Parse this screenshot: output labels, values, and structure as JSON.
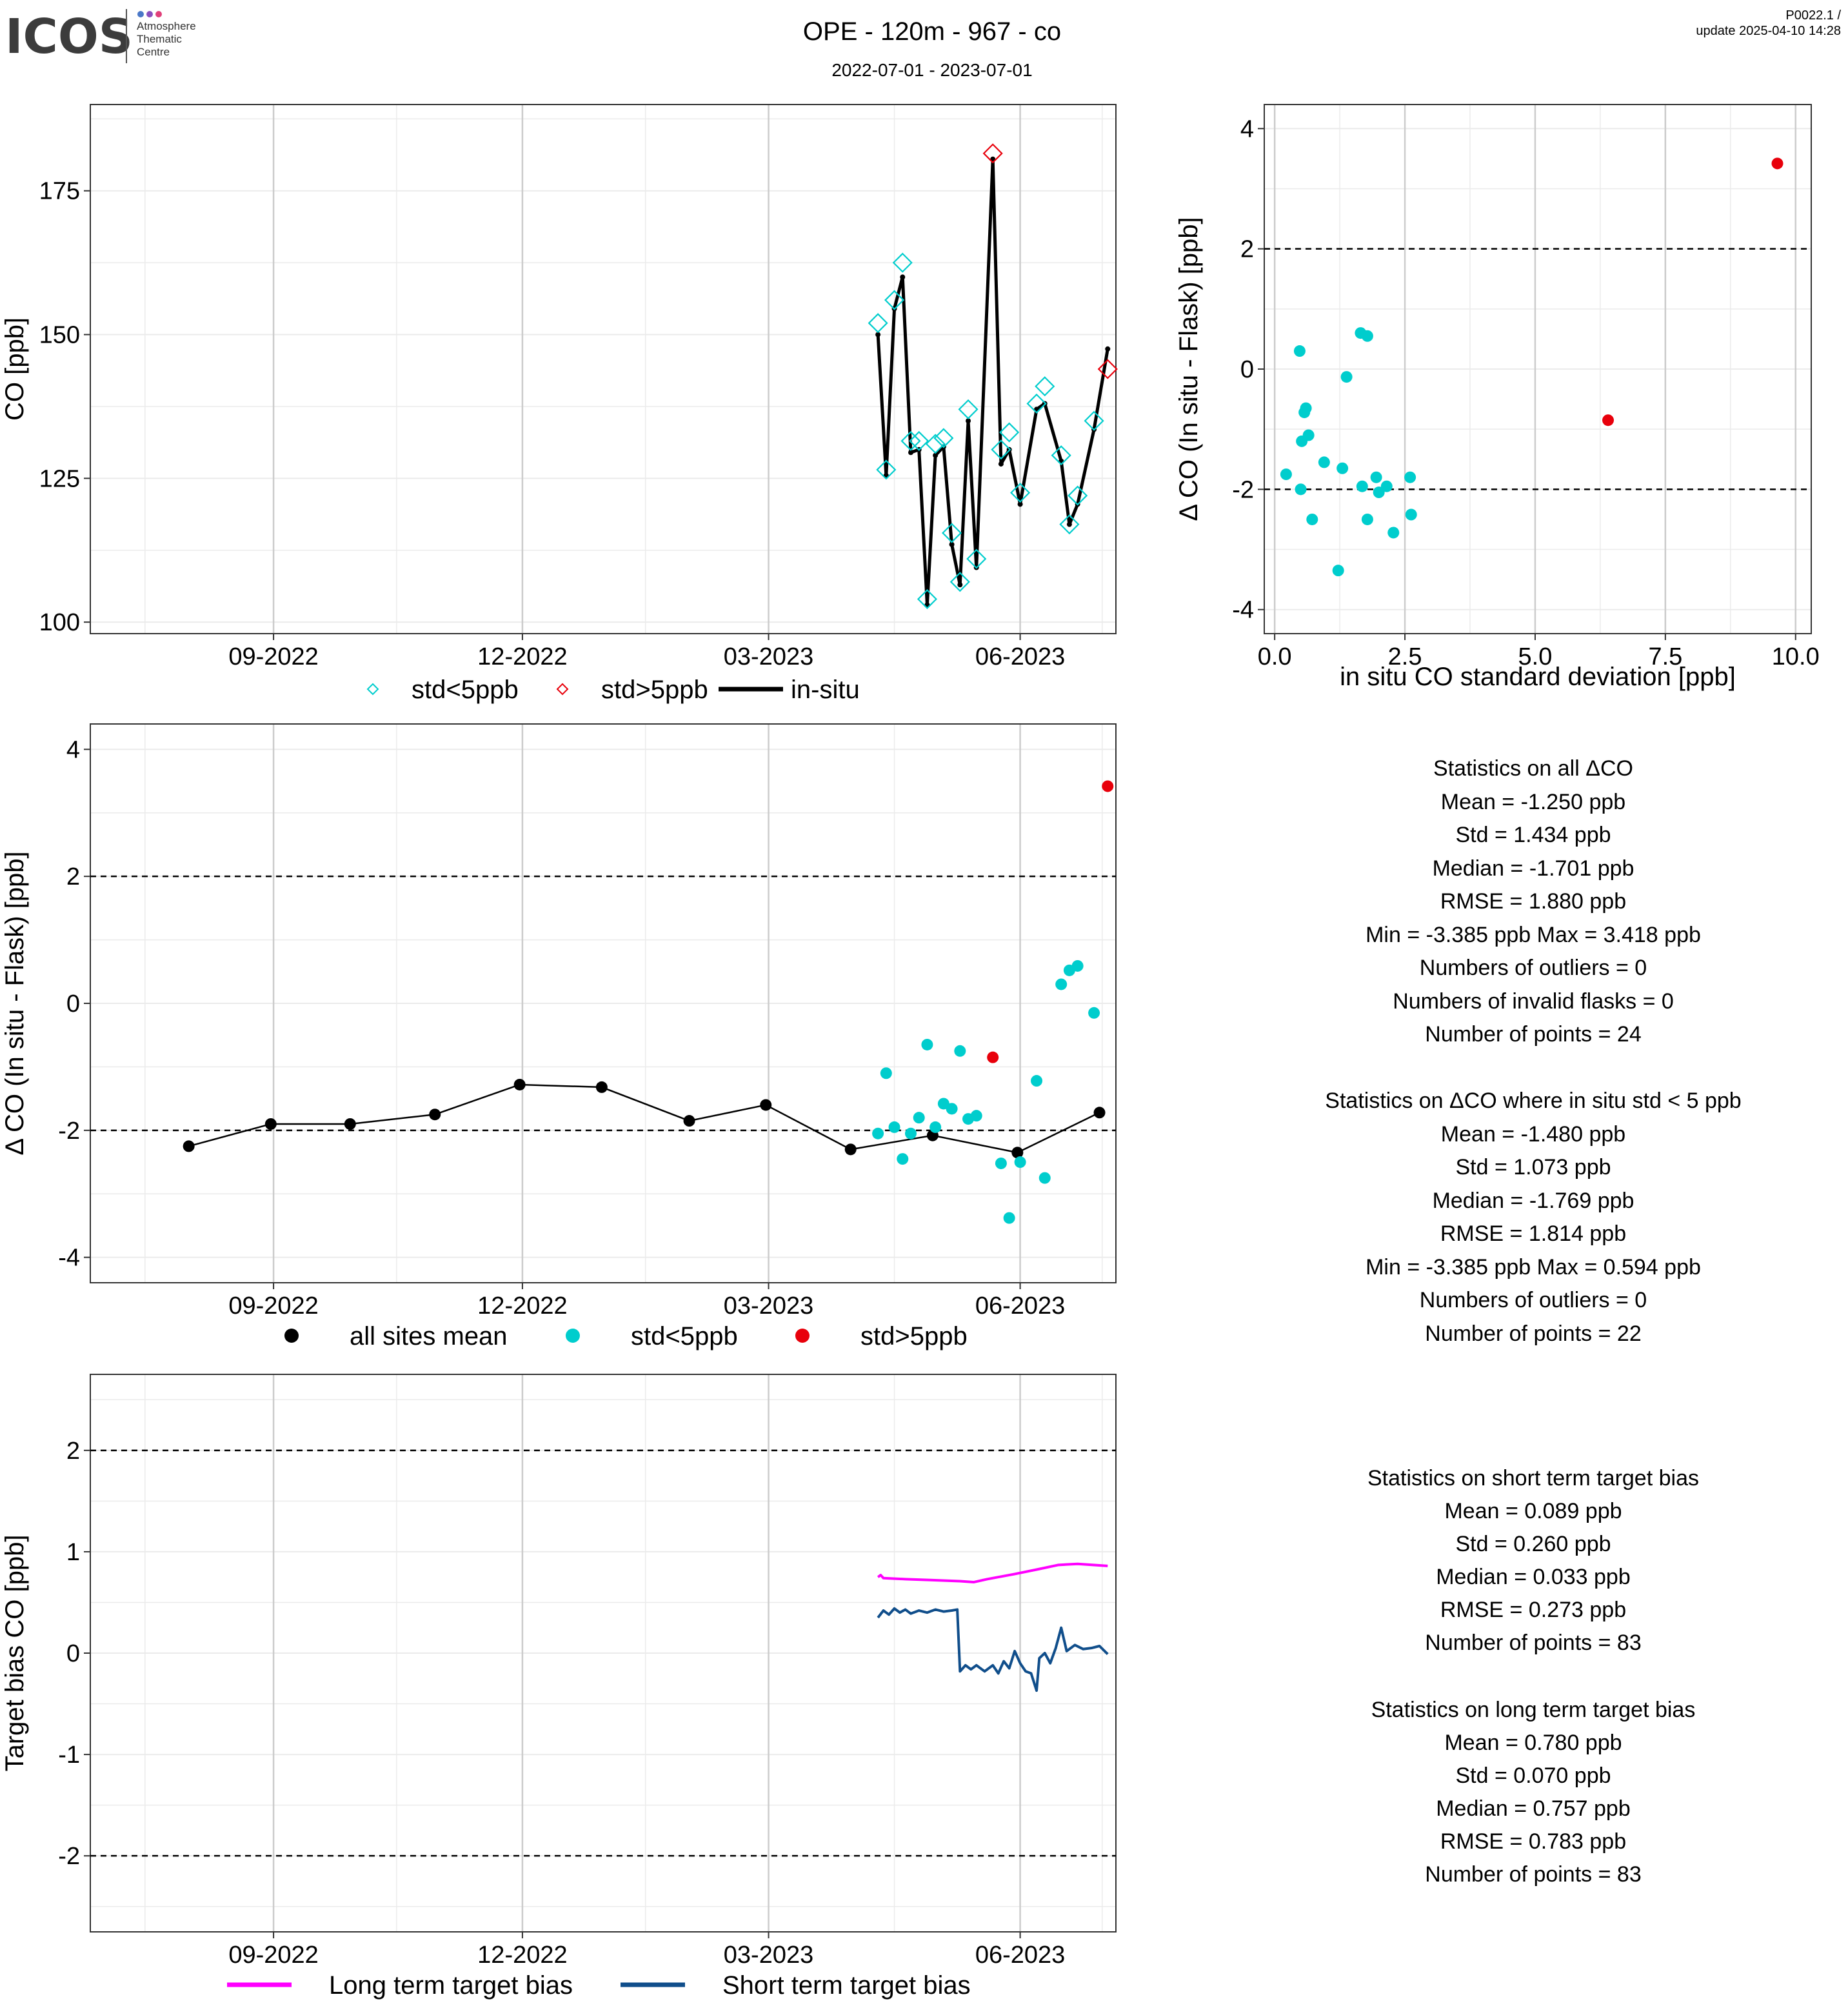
{
  "header": {
    "logo": {
      "name": "ICOS",
      "sub1": "Atmosphere",
      "sub2": "Thematic",
      "sub3": "Centre"
    },
    "title": "OPE - 120m - 967 - co",
    "subtitle": "2022-07-01 - 2023-07-01",
    "version": "P0022.1 /",
    "update": "update  2025-04-10 14:28"
  },
  "stats": {
    "all": {
      "title": "Statistics on all ΔCO",
      "lines": [
        "Mean =  -1.250 ppb",
        "Std =  1.434 ppb",
        "Median =  -1.701 ppb",
        "RMSE =  1.880 ppb",
        "Min =  -3.385 ppb Max =  3.418 ppb",
        "Numbers of outliers =  0",
        "Numbers of invalid flasks =  0",
        "Number of points =  24"
      ]
    },
    "lt5": {
      "title": "Statistics on ΔCO where in situ std < 5 ppb",
      "lines": [
        "Mean =  -1.480 ppb",
        "Std =  1.073 ppb",
        "Median =  -1.769 ppb",
        "RMSE =  1.814 ppb",
        "Min =  -3.385 ppb Max =  0.594 ppb",
        "Numbers of outliers =  0",
        "Number of points =  22"
      ]
    },
    "short": {
      "title": "Statistics on short term target bias",
      "lines": [
        "Mean =  0.089 ppb",
        "Std =  0.260 ppb",
        "Median =  0.033 ppb",
        "RMSE =  0.273 ppb",
        "Number of points =  83"
      ]
    },
    "long": {
      "title": "Statistics on long term target bias",
      "lines": [
        "Mean =  0.780 ppb",
        "Std =  0.070 ppb",
        "Median =  0.757 ppb",
        "RMSE =  0.783 ppb",
        "Number of points =  83"
      ]
    }
  },
  "colors": {
    "cyan": "#00CDCD",
    "red": "#E8000B",
    "black": "#000000",
    "magenta": "#FF00FF",
    "navy": "#104E8B",
    "grid": "#CCCCCC",
    "gridMinor": "#EBEBEB"
  },
  "chart_data": [
    {
      "id": "co-timeseries",
      "type": "line",
      "ylabel": "CO [ppb]",
      "xlabel": "",
      "x_ticks": [
        "09-2022",
        "12-2022",
        "03-2023",
        "06-2023"
      ],
      "x_tick_dates": [
        "2022-09-01",
        "2022-12-01",
        "2023-03-01",
        "2023-06-01"
      ],
      "xlim": [
        "2022-06-26",
        "2023-07-06"
      ],
      "ylim": [
        98,
        190
      ],
      "y_ticks": [
        100,
        125,
        150,
        175
      ],
      "legend": [
        "std<5ppb",
        "std>5ppb",
        "in-situ"
      ],
      "legend_position": "bottom",
      "insitu": [
        {
          "x": "2023-04-10",
          "y": 150.0
        },
        {
          "x": "2023-04-13",
          "y": 125.5
        },
        {
          "x": "2023-04-16",
          "y": 154.5
        },
        {
          "x": "2023-04-19",
          "y": 160.0
        },
        {
          "x": "2023-04-22",
          "y": 129.5
        },
        {
          "x": "2023-04-25",
          "y": 130.0
        },
        {
          "x": "2023-04-28",
          "y": 103.0
        },
        {
          "x": "2023-05-01",
          "y": 129.0
        },
        {
          "x": "2023-05-04",
          "y": 130.5
        },
        {
          "x": "2023-05-07",
          "y": 113.5
        },
        {
          "x": "2023-05-10",
          "y": 106.5
        },
        {
          "x": "2023-05-13",
          "y": 135.0
        },
        {
          "x": "2023-05-16",
          "y": 109.5
        },
        {
          "x": "2023-05-22",
          "y": 180.5
        },
        {
          "x": "2023-05-25",
          "y": 127.5
        },
        {
          "x": "2023-05-28",
          "y": 130.0
        },
        {
          "x": "2023-06-01",
          "y": 120.5
        },
        {
          "x": "2023-06-07",
          "y": 137.0
        },
        {
          "x": "2023-06-10",
          "y": 138.0
        },
        {
          "x": "2023-06-16",
          "y": 128.0
        },
        {
          "x": "2023-06-19",
          "y": 117.0
        },
        {
          "x": "2023-06-22",
          "y": 120.5
        },
        {
          "x": "2023-06-28",
          "y": 133.5
        },
        {
          "x": "2023-07-03",
          "y": 147.5
        }
      ],
      "flask_lt5": [
        {
          "x": "2023-04-10",
          "y": 152.0
        },
        {
          "x": "2023-04-13",
          "y": 126.5
        },
        {
          "x": "2023-04-16",
          "y": 156.0
        },
        {
          "x": "2023-04-19",
          "y": 162.5
        },
        {
          "x": "2023-04-22",
          "y": 131.5
        },
        {
          "x": "2023-04-25",
          "y": 131.5
        },
        {
          "x": "2023-04-28",
          "y": 104.0
        },
        {
          "x": "2023-05-01",
          "y": 131.0
        },
        {
          "x": "2023-05-04",
          "y": 132.0
        },
        {
          "x": "2023-05-07",
          "y": 115.5
        },
        {
          "x": "2023-05-10",
          "y": 107.0
        },
        {
          "x": "2023-05-13",
          "y": 137.0
        },
        {
          "x": "2023-05-16",
          "y": 111.0
        },
        {
          "x": "2023-05-25",
          "y": 130.0
        },
        {
          "x": "2023-05-28",
          "y": 133.0
        },
        {
          "x": "2023-06-01",
          "y": 122.5
        },
        {
          "x": "2023-06-07",
          "y": 138.0
        },
        {
          "x": "2023-06-10",
          "y": 141.0
        },
        {
          "x": "2023-06-16",
          "y": 129.0
        },
        {
          "x": "2023-06-19",
          "y": 117.0
        },
        {
          "x": "2023-06-22",
          "y": 122.0
        },
        {
          "x": "2023-06-28",
          "y": 135.0
        }
      ],
      "flask_gt5": [
        {
          "x": "2023-05-22",
          "y": 181.5
        },
        {
          "x": "2023-07-03",
          "y": 144.0
        }
      ]
    },
    {
      "id": "delta-vs-std",
      "type": "scatter",
      "xlabel": "in situ CO standard deviation [ppb]",
      "ylabel": "Δ CO (In situ - Flask) [ppb]",
      "xlim": [
        -0.2,
        10.3
      ],
      "ylim": [
        -4.4,
        4.4
      ],
      "x_ticks": [
        0.0,
        2.5,
        5.0,
        7.5,
        10.0
      ],
      "x_tick_labels": [
        "0.0",
        "2.5",
        "5.0",
        "7.5",
        "10.0"
      ],
      "y_ticks": [
        -4,
        -2,
        0,
        2,
        4
      ],
      "hlines": [
        2,
        -2
      ],
      "lt5": [
        {
          "x": 0.22,
          "y": -1.75
        },
        {
          "x": 0.48,
          "y": 0.3
        },
        {
          "x": 0.5,
          "y": -2.0
        },
        {
          "x": 0.52,
          "y": -1.2
        },
        {
          "x": 0.57,
          "y": -0.72
        },
        {
          "x": 0.6,
          "y": -0.65
        },
        {
          "x": 0.65,
          "y": -1.1
        },
        {
          "x": 0.72,
          "y": -2.5
        },
        {
          "x": 0.95,
          "y": -1.55
        },
        {
          "x": 1.22,
          "y": -3.35
        },
        {
          "x": 1.3,
          "y": -1.65
        },
        {
          "x": 1.38,
          "y": -0.13
        },
        {
          "x": 1.65,
          "y": 0.6
        },
        {
          "x": 1.68,
          "y": -1.95
        },
        {
          "x": 1.78,
          "y": 0.55
        },
        {
          "x": 1.78,
          "y": -2.5
        },
        {
          "x": 1.95,
          "y": -1.8
        },
        {
          "x": 2.0,
          "y": -2.05
        },
        {
          "x": 2.15,
          "y": -1.95
        },
        {
          "x": 2.28,
          "y": -2.72
        },
        {
          "x": 2.6,
          "y": -1.8
        },
        {
          "x": 2.62,
          "y": -2.42
        }
      ],
      "gt5": [
        {
          "x": 6.4,
          "y": -0.85
        },
        {
          "x": 9.65,
          "y": 3.42
        }
      ]
    },
    {
      "id": "delta-timeseries",
      "type": "scatter",
      "ylabel": "Δ CO (In situ - Flask) [ppb]",
      "xlabel": "",
      "x_ticks": [
        "09-2022",
        "12-2022",
        "03-2023",
        "06-2023"
      ],
      "x_tick_dates": [
        "2022-09-01",
        "2022-12-01",
        "2023-03-01",
        "2023-06-01"
      ],
      "xlim": [
        "2022-06-26",
        "2023-07-06"
      ],
      "ylim": [
        -4.4,
        4.4
      ],
      "y_ticks": [
        -4,
        -2,
        0,
        2,
        4
      ],
      "hlines": [
        2,
        -2
      ],
      "legend": [
        "all sites mean",
        "std<5ppb",
        "std>5ppb"
      ],
      "legend_position": "bottom",
      "mean": [
        {
          "x": "2022-08-01",
          "y": -2.25
        },
        {
          "x": "2022-08-31",
          "y": -1.9
        },
        {
          "x": "2022-09-29",
          "y": -1.9
        },
        {
          "x": "2022-10-30",
          "y": -1.75
        },
        {
          "x": "2022-11-30",
          "y": -1.28
        },
        {
          "x": "2022-12-30",
          "y": -1.32
        },
        {
          "x": "2023-01-31",
          "y": -1.85
        },
        {
          "x": "2023-02-28",
          "y": -1.6
        },
        {
          "x": "2023-03-31",
          "y": -2.3
        },
        {
          "x": "2023-04-30",
          "y": -2.08
        },
        {
          "x": "2023-05-31",
          "y": -2.35
        },
        {
          "x": "2023-06-30",
          "y": -1.72
        }
      ],
      "lt5": [
        {
          "x": "2023-04-10",
          "y": -2.05
        },
        {
          "x": "2023-04-13",
          "y": -1.1
        },
        {
          "x": "2023-04-16",
          "y": -1.95
        },
        {
          "x": "2023-04-19",
          "y": -2.45
        },
        {
          "x": "2023-04-22",
          "y": -2.05
        },
        {
          "x": "2023-04-25",
          "y": -1.8
        },
        {
          "x": "2023-04-28",
          "y": -0.65
        },
        {
          "x": "2023-05-01",
          "y": -1.95
        },
        {
          "x": "2023-05-04",
          "y": -1.58
        },
        {
          "x": "2023-05-07",
          "y": -1.66
        },
        {
          "x": "2023-05-10",
          "y": -0.75
        },
        {
          "x": "2023-05-13",
          "y": -1.82
        },
        {
          "x": "2023-05-16",
          "y": -1.77
        },
        {
          "x": "2023-05-25",
          "y": -2.52
        },
        {
          "x": "2023-05-28",
          "y": -3.38
        },
        {
          "x": "2023-06-01",
          "y": -2.5
        },
        {
          "x": "2023-06-07",
          "y": -1.22
        },
        {
          "x": "2023-06-10",
          "y": -2.75
        },
        {
          "x": "2023-06-16",
          "y": 0.3
        },
        {
          "x": "2023-06-19",
          "y": 0.52
        },
        {
          "x": "2023-06-22",
          "y": 0.59
        },
        {
          "x": "2023-06-28",
          "y": -0.15
        }
      ],
      "gt5": [
        {
          "x": "2023-05-22",
          "y": -0.85
        },
        {
          "x": "2023-07-03",
          "y": 3.42
        }
      ]
    },
    {
      "id": "target-bias",
      "type": "line",
      "ylabel": "Target bias CO [ppb]",
      "xlabel": "",
      "x_ticks": [
        "09-2022",
        "12-2022",
        "03-2023",
        "06-2023"
      ],
      "x_tick_dates": [
        "2022-09-01",
        "2022-12-01",
        "2023-03-01",
        "2023-06-01"
      ],
      "xlim": [
        "2022-06-26",
        "2023-07-06"
      ],
      "ylim": [
        -2.75,
        2.75
      ],
      "y_ticks": [
        -2,
        -1,
        0,
        1,
        2
      ],
      "hlines": [
        2,
        -2
      ],
      "legend": [
        "Long term target bias",
        "Short term target bias"
      ],
      "legend_position": "bottom",
      "series": [
        {
          "name": "Long term target bias",
          "color": "magenta",
          "points": [
            {
              "x": "2023-04-10",
              "y": 0.75
            },
            {
              "x": "2023-04-11",
              "y": 0.77
            },
            {
              "x": "2023-04-12",
              "y": 0.74
            },
            {
              "x": "2023-04-20",
              "y": 0.73
            },
            {
              "x": "2023-04-30",
              "y": 0.72
            },
            {
              "x": "2023-05-10",
              "y": 0.71
            },
            {
              "x": "2023-05-15",
              "y": 0.7
            },
            {
              "x": "2023-05-20",
              "y": 0.73
            },
            {
              "x": "2023-05-30",
              "y": 0.78
            },
            {
              "x": "2023-06-08",
              "y": 0.83
            },
            {
              "x": "2023-06-15",
              "y": 0.87
            },
            {
              "x": "2023-06-22",
              "y": 0.88
            },
            {
              "x": "2023-07-03",
              "y": 0.86
            }
          ]
        },
        {
          "name": "Short term target bias",
          "color": "navy",
          "points": [
            {
              "x": "2023-04-10",
              "y": 0.35
            },
            {
              "x": "2023-04-12",
              "y": 0.42
            },
            {
              "x": "2023-04-14",
              "y": 0.38
            },
            {
              "x": "2023-04-16",
              "y": 0.44
            },
            {
              "x": "2023-04-18",
              "y": 0.4
            },
            {
              "x": "2023-04-20",
              "y": 0.43
            },
            {
              "x": "2023-04-22",
              "y": 0.39
            },
            {
              "x": "2023-04-25",
              "y": 0.42
            },
            {
              "x": "2023-04-28",
              "y": 0.4
            },
            {
              "x": "2023-05-01",
              "y": 0.43
            },
            {
              "x": "2023-05-04",
              "y": 0.41
            },
            {
              "x": "2023-05-07",
              "y": 0.42
            },
            {
              "x": "2023-05-09",
              "y": 0.43
            },
            {
              "x": "2023-05-10",
              "y": -0.18
            },
            {
              "x": "2023-05-12",
              "y": -0.12
            },
            {
              "x": "2023-05-14",
              "y": -0.16
            },
            {
              "x": "2023-05-16",
              "y": -0.12
            },
            {
              "x": "2023-05-19",
              "y": -0.18
            },
            {
              "x": "2023-05-22",
              "y": -0.12
            },
            {
              "x": "2023-05-24",
              "y": -0.2
            },
            {
              "x": "2023-05-26",
              "y": -0.08
            },
            {
              "x": "2023-05-28",
              "y": -0.15
            },
            {
              "x": "2023-05-30",
              "y": 0.02
            },
            {
              "x": "2023-06-01",
              "y": -0.1
            },
            {
              "x": "2023-06-03",
              "y": -0.18
            },
            {
              "x": "2023-06-05",
              "y": -0.2
            },
            {
              "x": "2023-06-07",
              "y": -0.37
            },
            {
              "x": "2023-06-08",
              "y": -0.05
            },
            {
              "x": "2023-06-10",
              "y": 0.0
            },
            {
              "x": "2023-06-12",
              "y": -0.1
            },
            {
              "x": "2023-06-14",
              "y": 0.05
            },
            {
              "x": "2023-06-16",
              "y": 0.25
            },
            {
              "x": "2023-06-18",
              "y": 0.02
            },
            {
              "x": "2023-06-21",
              "y": 0.08
            },
            {
              "x": "2023-06-24",
              "y": 0.04
            },
            {
              "x": "2023-06-27",
              "y": 0.05
            },
            {
              "x": "2023-06-30",
              "y": 0.07
            },
            {
              "x": "2023-07-03",
              "y": -0.01
            }
          ]
        }
      ]
    }
  ]
}
